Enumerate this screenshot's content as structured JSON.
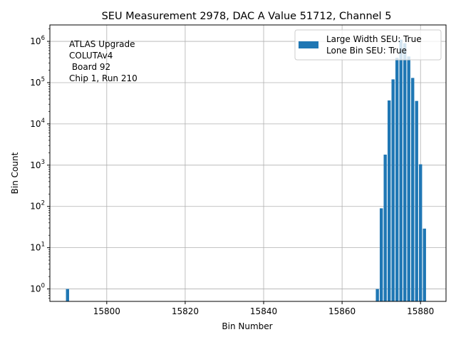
{
  "chart_data": {
    "type": "bar",
    "title": "SEU Measurement 2978, DAC A Value 51712, Channel 5",
    "xlabel": "Bin Number",
    "ylabel": "Bin Count",
    "xlim": [
      15785.5,
      15886.5
    ],
    "ylim": [
      0.5,
      2500000
    ],
    "yscale": "log",
    "grid": true,
    "bar_color": "#1f77b4",
    "x_ticks": [
      15800,
      15820,
      15840,
      15860,
      15880
    ],
    "x_tick_labels": [
      "15800",
      "15820",
      "15840",
      "15860",
      "15880"
    ],
    "y_ticks": [
      {
        "value": 1,
        "base": "10",
        "exp": "0"
      },
      {
        "value": 10,
        "base": "10",
        "exp": "1"
      },
      {
        "value": 100,
        "base": "10",
        "exp": "2"
      },
      {
        "value": 1000,
        "base": "10",
        "exp": "3"
      },
      {
        "value": 10000,
        "base": "10",
        "exp": "4"
      },
      {
        "value": 100000,
        "base": "10",
        "exp": "5"
      },
      {
        "value": 1000000,
        "base": "10",
        "exp": "6"
      }
    ],
    "bars": [
      {
        "x": 15790,
        "y": 1
      },
      {
        "x": 15869,
        "y": 1
      },
      {
        "x": 15870,
        "y": 90
      },
      {
        "x": 15871,
        "y": 1800
      },
      {
        "x": 15872,
        "y": 37000
      },
      {
        "x": 15873,
        "y": 120000
      },
      {
        "x": 15874,
        "y": 400000
      },
      {
        "x": 15875,
        "y": 1100000
      },
      {
        "x": 15876,
        "y": 900000
      },
      {
        "x": 15877,
        "y": 430000
      },
      {
        "x": 15878,
        "y": 130000
      },
      {
        "x": 15879,
        "y": 36000
      },
      {
        "x": 15880,
        "y": 1050
      },
      {
        "x": 15881,
        "y": 29
      }
    ],
    "legend": {
      "placement": "top-right",
      "entries": [
        "Large Width SEU: True",
        "Lone Bin SEU: True"
      ]
    },
    "annotation": [
      "ATLAS Upgrade",
      "COLUTAv4",
      " Board 92",
      "Chip 1, Run 210"
    ]
  }
}
